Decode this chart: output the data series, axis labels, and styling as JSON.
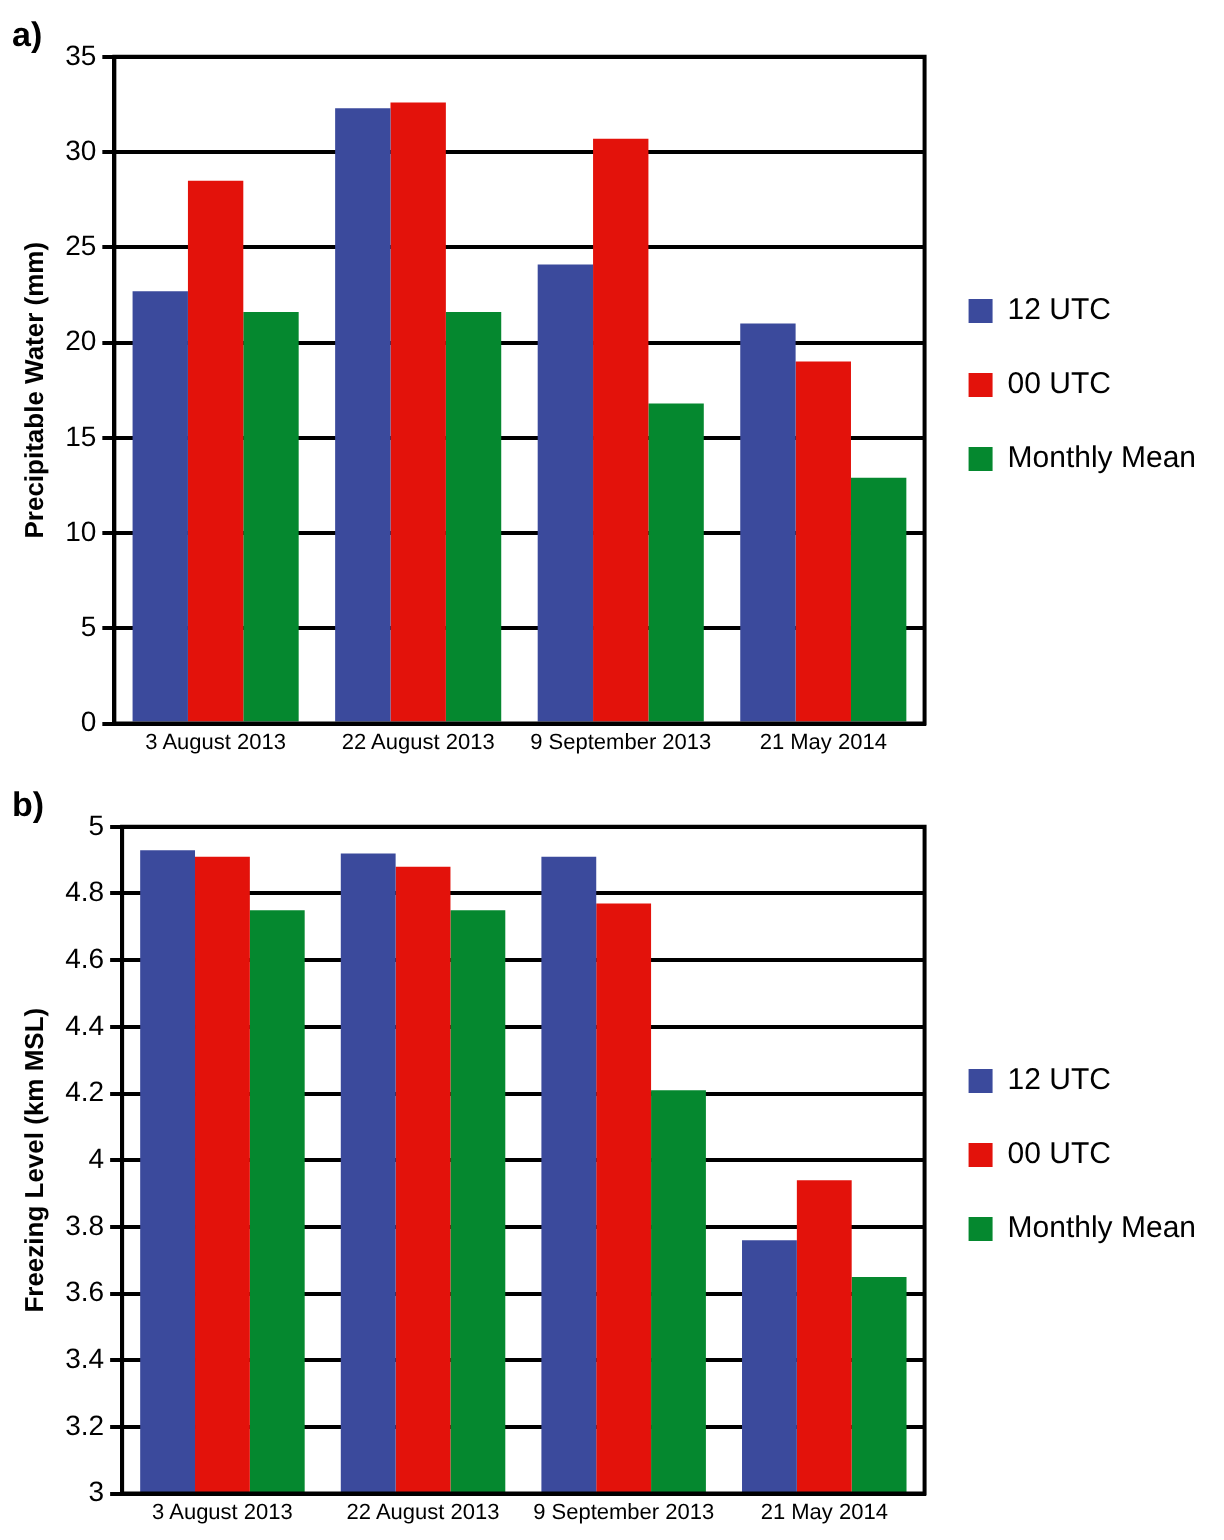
{
  "chart_data": [
    {
      "type": "bar",
      "title": "a)",
      "ylabel": "Precipitable Water (mm)",
      "categories": [
        "3 August 2013",
        "22 August 2013",
        "9 September 2013",
        "21 May 2014"
      ],
      "series": [
        {
          "name": "12 UTC",
          "color": "#3b4a9c",
          "values": [
            22.7,
            32.3,
            24.1,
            21.0
          ]
        },
        {
          "name": "00 UTC",
          "color": "#e3120b",
          "values": [
            28.5,
            32.6,
            30.7,
            19.0
          ]
        },
        {
          "name": "Monthly Mean",
          "color": "#05882f",
          "values": [
            21.6,
            21.6,
            16.8,
            12.9
          ]
        }
      ],
      "ylim": [
        0,
        35
      ],
      "yticks": [
        0,
        5,
        10,
        15,
        20,
        25,
        30,
        35
      ],
      "grid": "y",
      "legend": "right"
    },
    {
      "type": "bar",
      "title": "b)",
      "ylabel": "Freezing Level (km MSL)",
      "categories": [
        "3 August 2013",
        "22 August 2013",
        "9 September 2013",
        "21 May 2014"
      ],
      "series": [
        {
          "name": "12 UTC",
          "color": "#3b4a9c",
          "values": [
            4.93,
            4.92,
            4.91,
            3.76
          ]
        },
        {
          "name": "00 UTC",
          "color": "#e3120b",
          "values": [
            4.91,
            4.88,
            4.77,
            3.94
          ]
        },
        {
          "name": "Monthly Mean",
          "color": "#05882f",
          "values": [
            4.75,
            4.75,
            4.21,
            3.65
          ]
        }
      ],
      "ylim": [
        3,
        5
      ],
      "yticks": [
        3,
        3.2,
        3.4,
        3.6,
        3.8,
        4,
        4.2,
        4.4,
        4.6,
        4.8,
        5
      ],
      "grid": "y",
      "legend": "right"
    }
  ]
}
